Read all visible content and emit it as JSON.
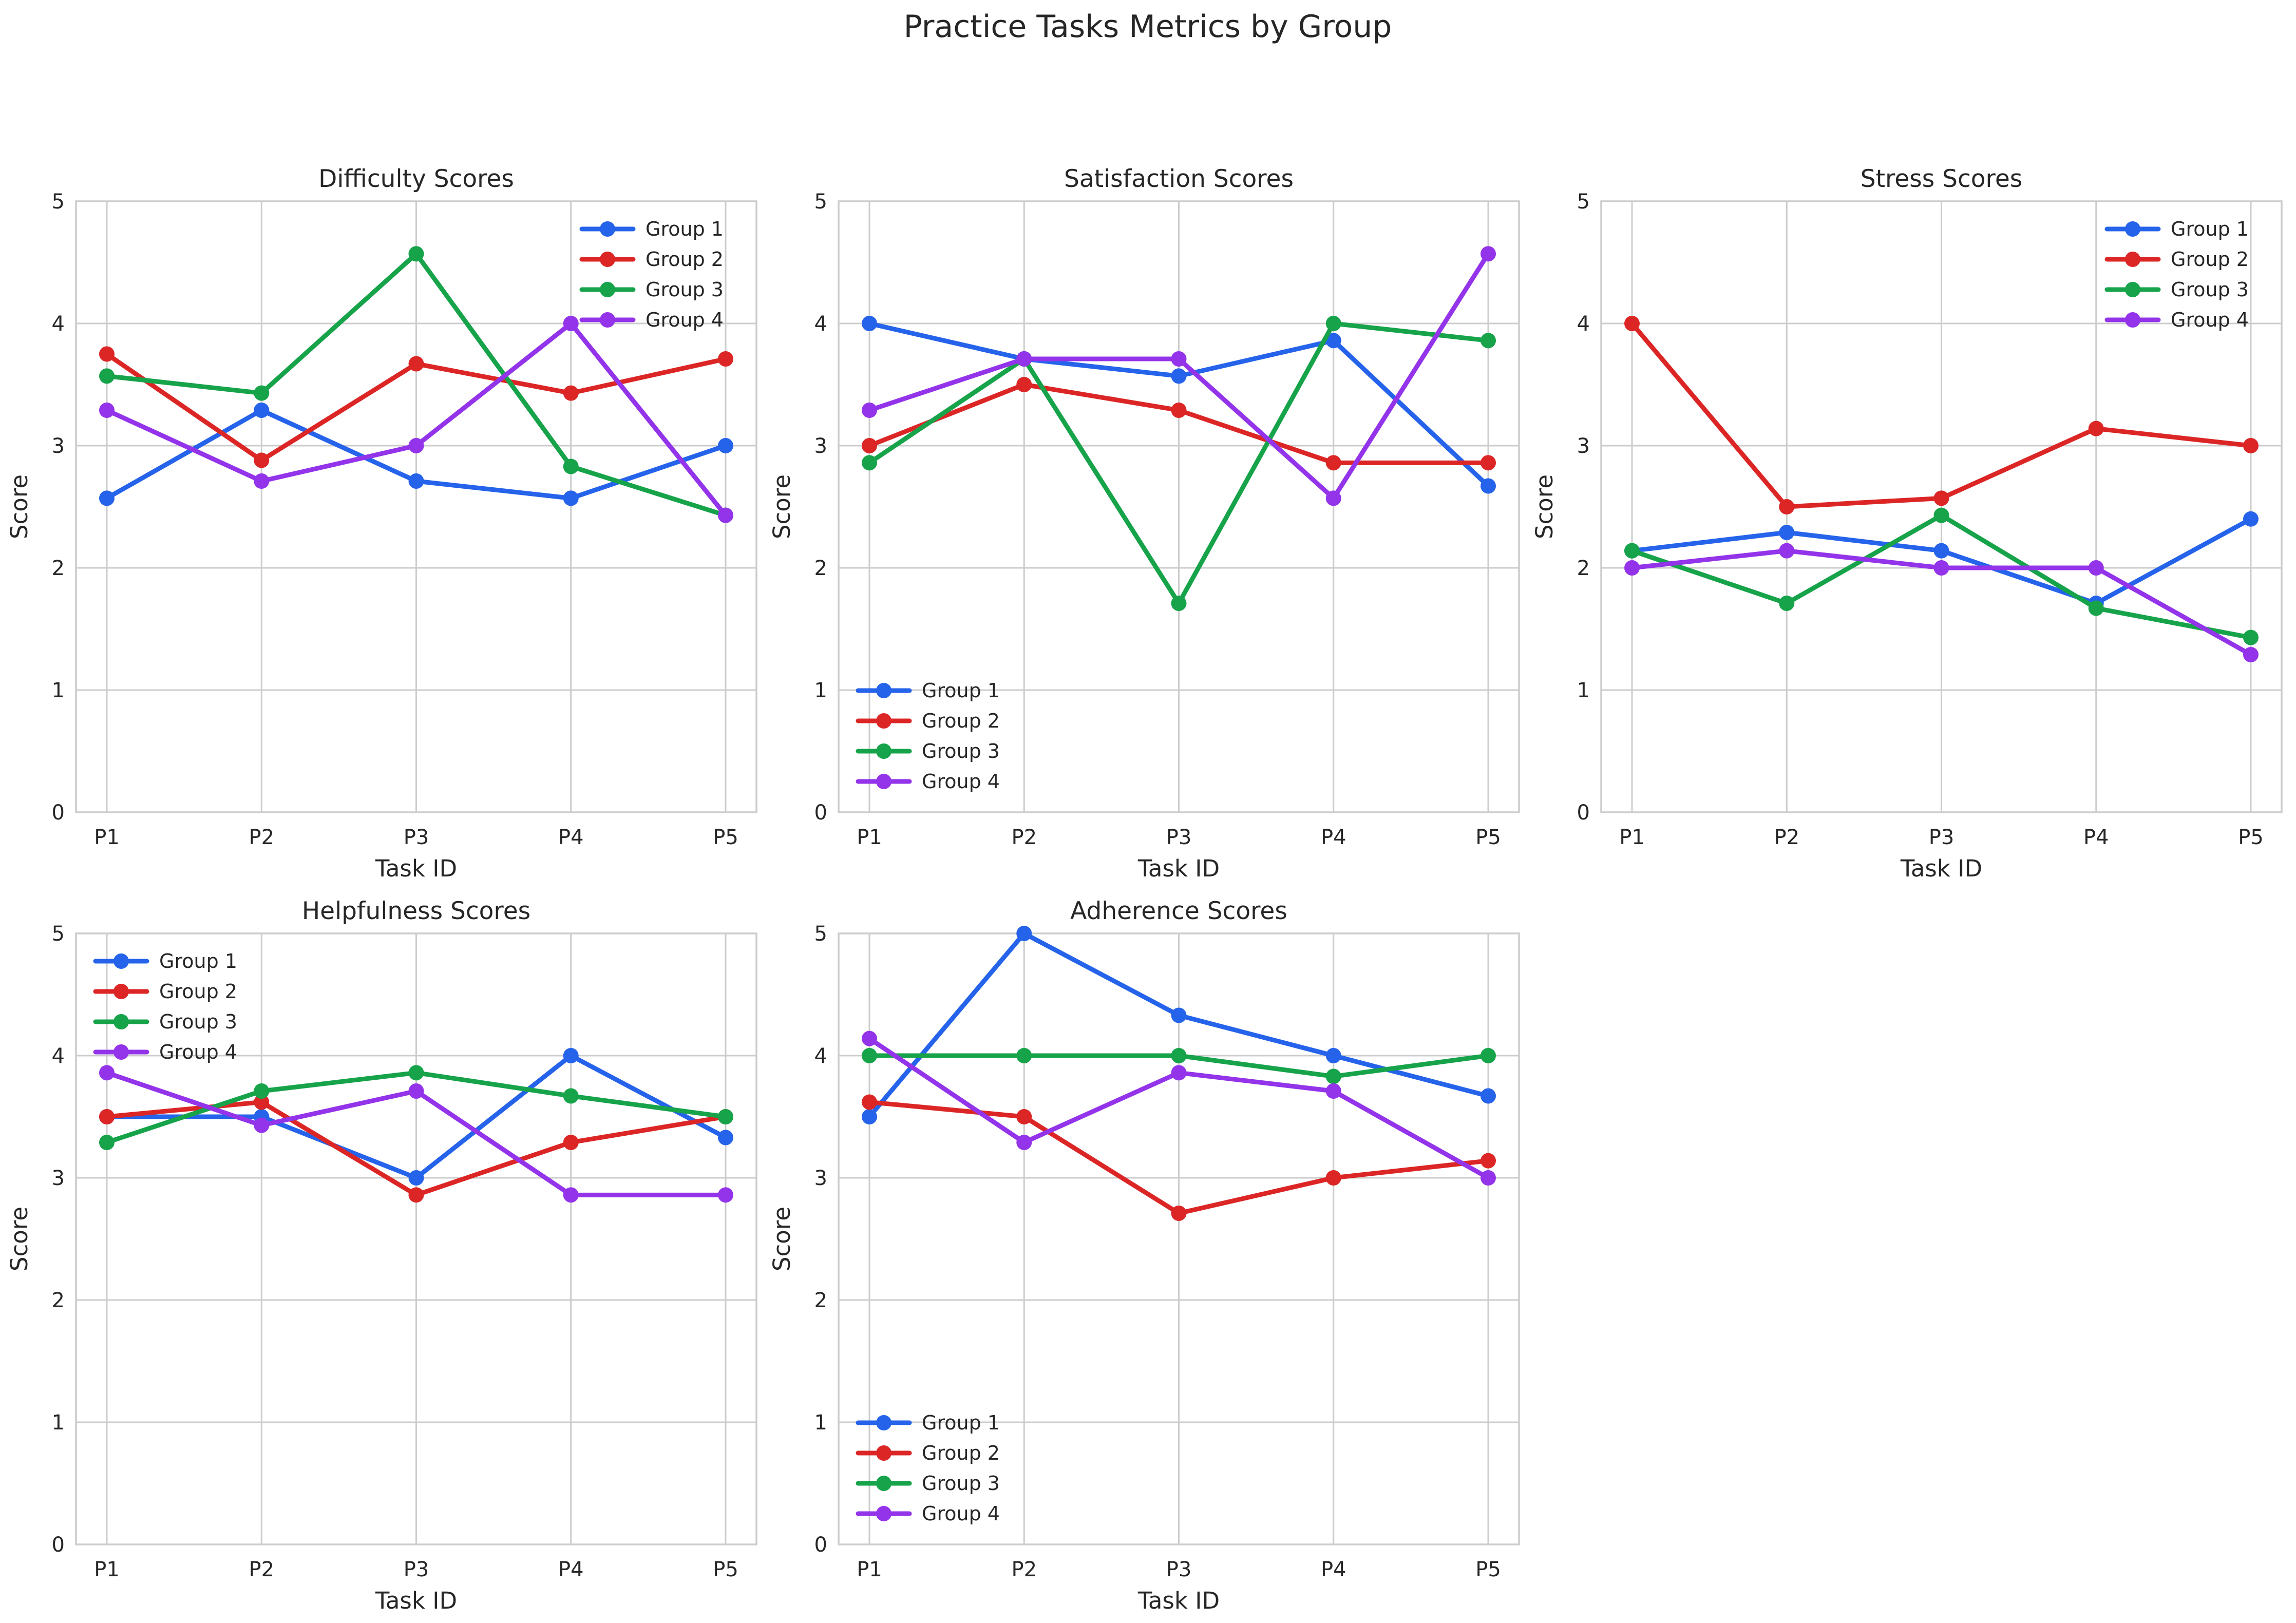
{
  "figure_title": "Practice Tasks Metrics by Group",
  "chart_data": [
    {
      "type": "line",
      "title": "Difficulty Scores",
      "xlabel": "Task ID",
      "ylabel": "Score",
      "categories": [
        "P1",
        "P2",
        "P3",
        "P4",
        "P5"
      ],
      "ylim": [
        0,
        5
      ],
      "yticks": [
        "0",
        "1",
        "2",
        "3",
        "4",
        "5"
      ],
      "grid": true,
      "legend_position": "top-right",
      "series": [
        {
          "name": "Group 1",
          "color": "#2563eb",
          "values": [
            2.57,
            3.29,
            2.71,
            2.57,
            3.0
          ]
        },
        {
          "name": "Group 2",
          "color": "#dc2626",
          "values": [
            3.75,
            2.88,
            3.67,
            3.43,
            3.71
          ]
        },
        {
          "name": "Group 3",
          "color": "#16a34a",
          "values": [
            3.57,
            3.43,
            4.57,
            2.83,
            2.43
          ]
        },
        {
          "name": "Group 4",
          "color": "#9333ea",
          "values": [
            3.29,
            2.71,
            3.0,
            4.0,
            2.43
          ]
        }
      ]
    },
    {
      "type": "line",
      "title": "Satisfaction Scores",
      "xlabel": "Task ID",
      "ylabel": "Score",
      "categories": [
        "P1",
        "P2",
        "P3",
        "P4",
        "P5"
      ],
      "ylim": [
        0,
        5
      ],
      "yticks": [
        "0",
        "1",
        "2",
        "3",
        "4",
        "5"
      ],
      "grid": true,
      "legend_position": "bottom-left",
      "series": [
        {
          "name": "Group 1",
          "color": "#2563eb",
          "values": [
            4.0,
            3.71,
            3.57,
            3.86,
            2.67
          ]
        },
        {
          "name": "Group 2",
          "color": "#dc2626",
          "values": [
            3.0,
            3.5,
            3.29,
            2.86,
            2.86
          ]
        },
        {
          "name": "Group 3",
          "color": "#16a34a",
          "values": [
            2.86,
            3.71,
            1.71,
            4.0,
            3.86
          ]
        },
        {
          "name": "Group 4",
          "color": "#9333ea",
          "values": [
            3.29,
            3.71,
            3.71,
            2.57,
            4.57
          ]
        }
      ]
    },
    {
      "type": "line",
      "title": "Stress Scores",
      "xlabel": "Task ID",
      "ylabel": "Score",
      "categories": [
        "P1",
        "P2",
        "P3",
        "P4",
        "P5"
      ],
      "ylim": [
        0,
        5
      ],
      "yticks": [
        "0",
        "1",
        "2",
        "3",
        "4",
        "5"
      ],
      "grid": true,
      "legend_position": "top-right",
      "series": [
        {
          "name": "Group 1",
          "color": "#2563eb",
          "values": [
            2.14,
            2.29,
            2.14,
            1.71,
            2.4
          ]
        },
        {
          "name": "Group 2",
          "color": "#dc2626",
          "values": [
            4.0,
            2.5,
            2.57,
            3.14,
            3.0
          ]
        },
        {
          "name": "Group 3",
          "color": "#16a34a",
          "values": [
            2.14,
            1.71,
            2.43,
            1.67,
            1.43
          ]
        },
        {
          "name": "Group 4",
          "color": "#9333ea",
          "values": [
            2.0,
            2.14,
            2.0,
            2.0,
            1.29
          ]
        }
      ]
    },
    {
      "type": "line",
      "title": "Helpfulness Scores",
      "xlabel": "Task ID",
      "ylabel": "Score",
      "categories": [
        "P1",
        "P2",
        "P3",
        "P4",
        "P5"
      ],
      "ylim": [
        0,
        5
      ],
      "yticks": [
        "0",
        "1",
        "2",
        "3",
        "4",
        "5"
      ],
      "grid": true,
      "legend_position": "top-left",
      "series": [
        {
          "name": "Group 1",
          "color": "#2563eb",
          "values": [
            3.5,
            3.5,
            3.0,
            4.0,
            3.33
          ]
        },
        {
          "name": "Group 2",
          "color": "#dc2626",
          "values": [
            3.5,
            3.62,
            2.86,
            3.29,
            3.5
          ]
        },
        {
          "name": "Group 3",
          "color": "#16a34a",
          "values": [
            3.29,
            3.71,
            3.86,
            3.67,
            3.5
          ]
        },
        {
          "name": "Group 4",
          "color": "#9333ea",
          "values": [
            3.86,
            3.43,
            3.71,
            2.86,
            2.86
          ]
        }
      ]
    },
    {
      "type": "line",
      "title": "Adherence Scores",
      "xlabel": "Task ID",
      "ylabel": "Score",
      "categories": [
        "P1",
        "P2",
        "P3",
        "P4",
        "P5"
      ],
      "ylim": [
        0,
        5
      ],
      "yticks": [
        "0",
        "1",
        "2",
        "3",
        "4",
        "5"
      ],
      "grid": true,
      "legend_position": "bottom-left",
      "series": [
        {
          "name": "Group 1",
          "color": "#2563eb",
          "values": [
            3.5,
            5.0,
            4.33,
            4.0,
            3.67
          ]
        },
        {
          "name": "Group 2",
          "color": "#dc2626",
          "values": [
            3.62,
            3.5,
            2.71,
            3.0,
            3.14
          ]
        },
        {
          "name": "Group 3",
          "color": "#16a34a",
          "values": [
            4.0,
            4.0,
            4.0,
            3.83,
            4.0
          ]
        },
        {
          "name": "Group 4",
          "color": "#9333ea",
          "values": [
            4.14,
            3.29,
            3.86,
            3.71,
            3.0
          ]
        }
      ]
    }
  ]
}
